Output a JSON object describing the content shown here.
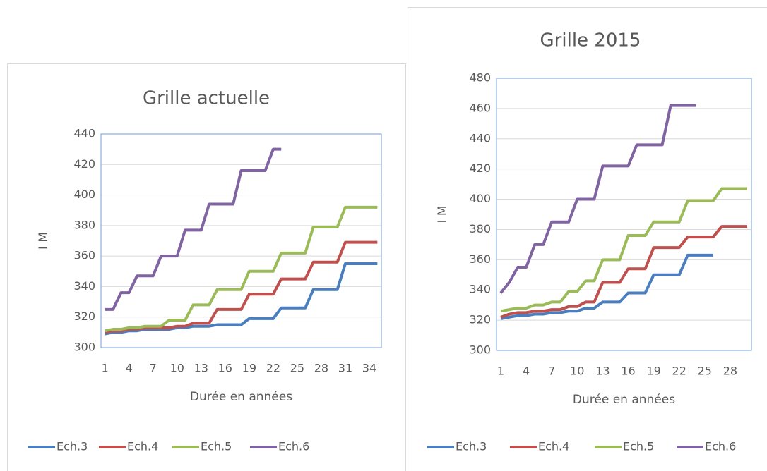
{
  "chart_data": [
    {
      "type": "line",
      "title": "Grille actuelle",
      "x_label": "Durée en années",
      "y_label": "I M",
      "x": [
        1,
        2,
        3,
        4,
        5,
        6,
        7,
        8,
        9,
        10,
        11,
        12,
        13,
        14,
        15,
        16,
        17,
        18,
        19,
        20,
        21,
        22,
        23,
        24,
        25,
        26,
        27,
        28,
        29,
        30,
        31,
        32,
        33,
        34,
        35
      ],
      "xlim": [
        0.5,
        35.5
      ],
      "xticks": [
        1,
        4,
        7,
        10,
        13,
        16,
        19,
        22,
        25,
        28,
        31,
        34
      ],
      "ylim": [
        300,
        440
      ],
      "yticks": [
        300,
        320,
        340,
        360,
        380,
        400,
        420,
        440
      ],
      "grid": true,
      "legend": "bottom",
      "series": [
        {
          "name": "Ech.3",
          "color": "#4a7ebf",
          "values": [
            309,
            310,
            310,
            311,
            311,
            312,
            312,
            312,
            312,
            313,
            313,
            314,
            314,
            314,
            315,
            315,
            315,
            315,
            319,
            319,
            319,
            319,
            326,
            326,
            326,
            326,
            338,
            338,
            338,
            338,
            355,
            355,
            355,
            355,
            355
          ]
        },
        {
          "name": "Ech.4",
          "color": "#c0504d",
          "values": [
            310,
            311,
            311,
            312,
            312,
            313,
            313,
            313,
            313,
            314,
            314,
            316,
            316,
            316,
            325,
            325,
            325,
            325,
            335,
            335,
            335,
            335,
            345,
            345,
            345,
            345,
            356,
            356,
            356,
            356,
            369,
            369,
            369,
            369,
            369
          ]
        },
        {
          "name": "Ech.5",
          "color": "#9bbb59",
          "values": [
            311,
            312,
            312,
            313,
            313,
            314,
            314,
            314,
            318,
            318,
            318,
            328,
            328,
            328,
            338,
            338,
            338,
            338,
            350,
            350,
            350,
            350,
            362,
            362,
            362,
            362,
            379,
            379,
            379,
            379,
            392,
            392,
            392,
            392,
            392
          ]
        },
        {
          "name": "Ech.6",
          "color": "#8064a2",
          "values": [
            325,
            325,
            336,
            336,
            347,
            347,
            347,
            360,
            360,
            360,
            377,
            377,
            377,
            394,
            394,
            394,
            394,
            416,
            416,
            416,
            416,
            430,
            430,
            null,
            null,
            null,
            null,
            null,
            null,
            null,
            null,
            null,
            null,
            null,
            null
          ]
        }
      ]
    },
    {
      "type": "line",
      "title": "Grille 2015",
      "x_label": "Durée en années",
      "y_label": "I M",
      "x": [
        1,
        2,
        3,
        4,
        5,
        6,
        7,
        8,
        9,
        10,
        11,
        12,
        13,
        14,
        15,
        16,
        17,
        18,
        19,
        20,
        21,
        22,
        23,
        24,
        25,
        26,
        27,
        28,
        29,
        30
      ],
      "xlim": [
        0.5,
        30.5
      ],
      "xticks": [
        1,
        4,
        7,
        10,
        13,
        16,
        19,
        22,
        25,
        28
      ],
      "ylim": [
        300,
        480
      ],
      "yticks": [
        300,
        320,
        340,
        360,
        380,
        400,
        420,
        440,
        460,
        480
      ],
      "grid": true,
      "legend": "bottom",
      "series": [
        {
          "name": "Ech.3",
          "color": "#4a7ebf",
          "values": [
            321,
            322,
            323,
            323,
            324,
            324,
            325,
            325,
            326,
            326,
            328,
            328,
            332,
            332,
            332,
            338,
            338,
            338,
            350,
            350,
            350,
            350,
            363,
            363,
            363,
            363,
            null,
            null,
            null,
            null
          ]
        },
        {
          "name": "Ech.4",
          "color": "#c0504d",
          "values": [
            322,
            324,
            325,
            325,
            326,
            326,
            327,
            327,
            329,
            329,
            332,
            332,
            345,
            345,
            345,
            354,
            354,
            354,
            368,
            368,
            368,
            368,
            375,
            375,
            375,
            375,
            382,
            382,
            382,
            382
          ]
        },
        {
          "name": "Ech.5",
          "color": "#9bbb59",
          "values": [
            326,
            327,
            328,
            328,
            330,
            330,
            332,
            332,
            339,
            339,
            346,
            346,
            360,
            360,
            360,
            376,
            376,
            376,
            385,
            385,
            385,
            385,
            399,
            399,
            399,
            399,
            407,
            407,
            407,
            407
          ]
        },
        {
          "name": "Ech.6",
          "color": "#8064a2",
          "values": [
            338,
            345,
            355,
            355,
            370,
            370,
            385,
            385,
            385,
            400,
            400,
            400,
            422,
            422,
            422,
            422,
            436,
            436,
            436,
            436,
            462,
            462,
            462,
            462,
            null,
            null,
            null,
            null,
            null,
            null
          ]
        }
      ]
    }
  ]
}
